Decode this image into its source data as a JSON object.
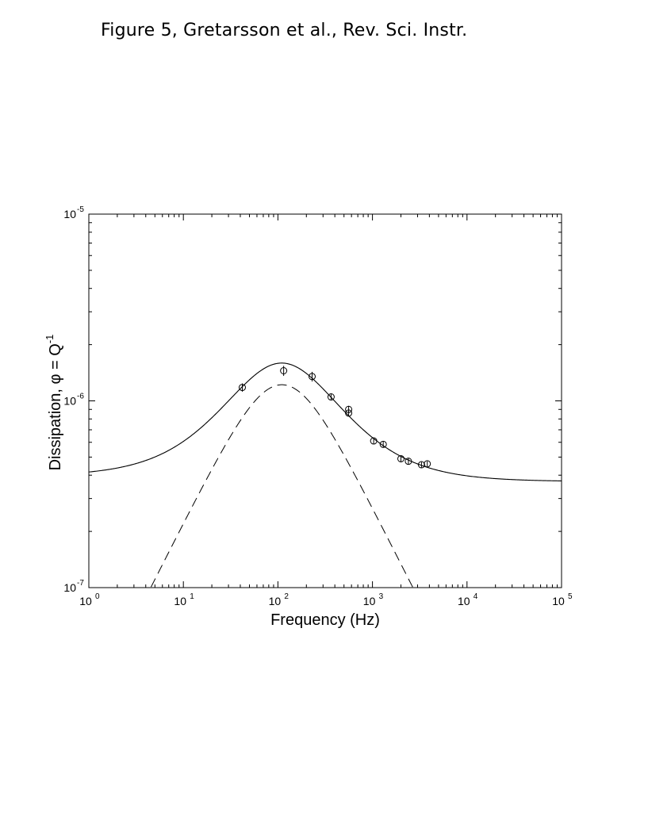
{
  "header": {
    "caption": "Figure 5, Gretarsson et al., Rev. Sci. Instr."
  },
  "chart_data": {
    "type": "scatter",
    "scale": {
      "x": "log",
      "y": "log"
    },
    "xlim": [
      1,
      100000
    ],
    "ylim": [
      1e-07,
      1e-05
    ],
    "xlabel": "Frequency (Hz)",
    "ylabel": "Dissipation,  φ = Q",
    "ylabel_superscript": "-1",
    "x_ticks": [
      {
        "base": "10",
        "exp": "0",
        "value": 1
      },
      {
        "base": "10",
        "exp": "1",
        "value": 10
      },
      {
        "base": "10",
        "exp": "2",
        "value": 100
      },
      {
        "base": "10",
        "exp": "3",
        "value": 1000
      },
      {
        "base": "10",
        "exp": "4",
        "value": 10000
      },
      {
        "base": "10",
        "exp": "5",
        "value": 100000
      }
    ],
    "y_ticks": [
      {
        "base": "10",
        "exp": "-7",
        "value": 1e-07
      },
      {
        "base": "10",
        "exp": "-6",
        "value": 1e-06
      },
      {
        "base": "10",
        "exp": "-5",
        "value": 1e-05
      }
    ],
    "grid": false,
    "series": [
      {
        "kind": "scatter-errorbar",
        "marker": "open-circle",
        "color": "#000000",
        "points": [
          {
            "x": 42,
            "y": 1.18e-06,
            "err": 6e-08
          },
          {
            "x": 115,
            "y": 1.45e-06,
            "err": 9e-08
          },
          {
            "x": 230,
            "y": 1.35e-06,
            "err": 8e-08
          },
          {
            "x": 365,
            "y": 1.05e-06,
            "err": 4e-08
          },
          {
            "x": 560,
            "y": 9e-07,
            "err": 4e-08
          },
          {
            "x": 560,
            "y": 8.6e-07,
            "err": 3e-08
          },
          {
            "x": 1030,
            "y": 6.1e-07,
            "err": 2e-08
          },
          {
            "x": 1300,
            "y": 5.85e-07,
            "err": 2e-08
          },
          {
            "x": 2000,
            "y": 4.9e-07,
            "err": 2e-08
          },
          {
            "x": 2400,
            "y": 4.75e-07,
            "err": 2e-08
          },
          {
            "x": 3300,
            "y": 4.55e-07,
            "err": 1.5e-08
          },
          {
            "x": 3800,
            "y": 4.6e-07,
            "err": 1.5e-08
          }
        ]
      },
      {
        "kind": "line",
        "style": "solid",
        "color": "#000000",
        "model": {
          "peak_freq": 110,
          "peak_height": 1.22e-06,
          "baseline": 3.7e-07,
          "baseline_low_freq_extra": 2.5e-08,
          "baseline_roll_freq": 20
        }
      },
      {
        "kind": "line",
        "style": "dashed",
        "color": "#000000",
        "model": {
          "peak_freq": 110,
          "peak_height": 1.22e-06
        }
      }
    ]
  }
}
